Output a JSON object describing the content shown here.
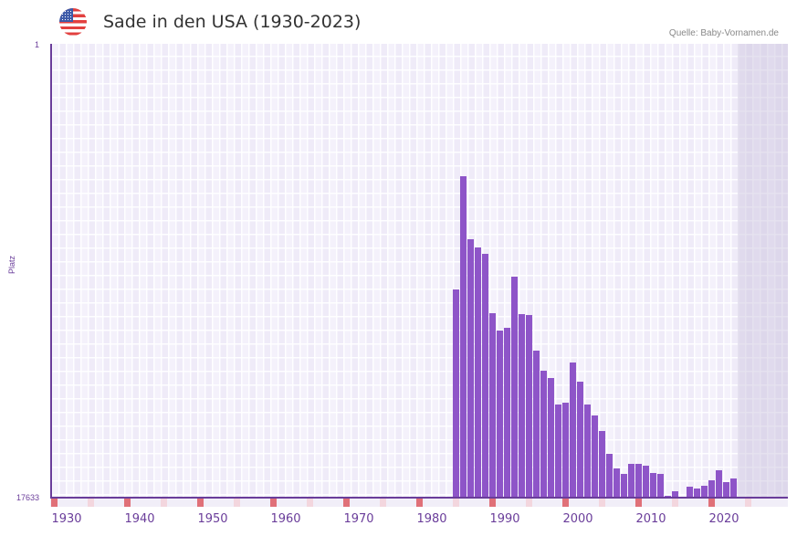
{
  "header": {
    "title": "Sade in den USA (1930-2023)",
    "source": "Quelle: Baby-Vornamen.de",
    "flag_icon": "us-flag-icon"
  },
  "colors": {
    "bar": "#8e55c8",
    "axis": "#6a3d9a",
    "plot_bg": "#efebf8",
    "decade_tick": "#e07078",
    "half_decade_tick": "#f3d6de"
  },
  "chart_data": {
    "type": "bar",
    "title": "Sade in den USA (1930-2023)",
    "xlabel": "",
    "ylabel": "Platz",
    "y_axis_inverted": true,
    "ylim": [
      17633,
      1
    ],
    "y_ticks": [
      "1",
      "17633"
    ],
    "x_ticks": [
      "1930",
      "1940",
      "1950",
      "1960",
      "1970",
      "1980",
      "1990",
      "2000",
      "2010",
      "2020"
    ],
    "x_range": [
      1930,
      2030
    ],
    "grid": true,
    "categories": [
      1985,
      1986,
      1987,
      1988,
      1989,
      1990,
      1991,
      1992,
      1993,
      1994,
      1995,
      1996,
      1997,
      1998,
      1999,
      2000,
      2001,
      2002,
      2003,
      2004,
      2005,
      2006,
      2007,
      2008,
      2009,
      2010,
      2011,
      2012,
      2013,
      2014,
      2015,
      2016,
      2017,
      2018,
      2019,
      2020,
      2021,
      2022,
      2023
    ],
    "values": [
      9530,
      5140,
      7590,
      7910,
      8160,
      10470,
      11140,
      11040,
      9050,
      10510,
      10540,
      11930,
      12710,
      12990,
      14020,
      13950,
      12390,
      13130,
      14020,
      14440,
      15050,
      15930,
      16500,
      16710,
      16320,
      16320,
      16390,
      16680,
      16710,
      17560,
      17380,
      17660,
      17210,
      17280,
      17170,
      16960,
      16570,
      17030,
      16890
    ],
    "values_note": "Estimated rank (Platz) per year; lower rank = taller bar"
  },
  "axis": {
    "y_top_label": "1",
    "y_bottom_label": "17633",
    "y_title": "Platz"
  }
}
